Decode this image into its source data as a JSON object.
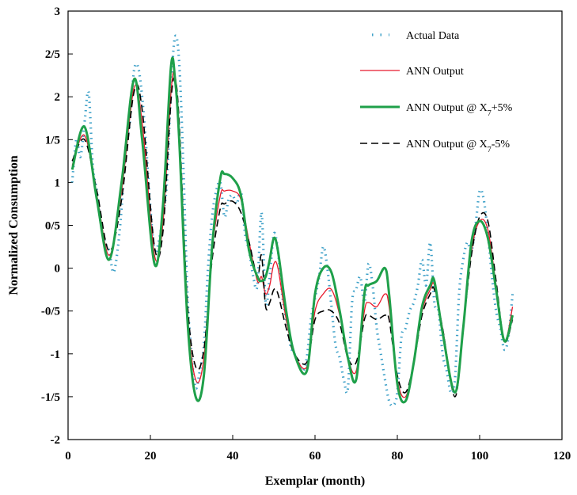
{
  "chart_data": {
    "type": "line",
    "title": "",
    "xlabel": "Exemplar (month)",
    "ylabel": "Normalized Consumption",
    "xlim": [
      0,
      120
    ],
    "ylim": [
      -2,
      3
    ],
    "xticks": [
      0,
      20,
      40,
      60,
      80,
      100,
      120
    ],
    "xtick_labels": [
      "0",
      "20",
      "40",
      "60",
      "80",
      "100",
      "120"
    ],
    "yticks": [
      -2,
      -1.5,
      -1,
      -0.5,
      0,
      0.5,
      1,
      1.5,
      2,
      2.5,
      3
    ],
    "ytick_labels": [
      "-2",
      "-1/5",
      "-1",
      "-0/5",
      "0",
      "0/5",
      "1",
      "1/5",
      "2",
      "2/5",
      "3"
    ],
    "grid": false,
    "legend_position": "top-right",
    "colors": {
      "actual": "#3da0c8",
      "ann": "#e8192c",
      "ann_plus": "#1fa04a",
      "ann_minus": "#000000"
    },
    "series": [
      {
        "name": "Actual Data",
        "style": "dotted",
        "x": [
          1,
          2,
          3,
          4,
          5,
          6,
          7,
          8,
          9,
          10,
          11,
          12,
          13,
          14,
          15,
          16,
          17,
          18,
          19,
          20,
          21,
          22,
          23,
          24,
          25,
          26,
          27,
          28,
          29,
          30,
          31,
          32,
          33,
          34,
          35,
          36,
          37,
          38,
          39,
          40,
          41,
          42,
          43,
          44,
          45,
          46,
          47,
          48,
          49,
          50,
          51,
          52,
          53,
          54,
          55,
          56,
          57,
          58,
          59,
          60,
          61,
          62,
          63,
          64,
          65,
          66,
          67,
          68,
          69,
          70,
          71,
          72,
          73,
          74,
          75,
          76,
          77,
          78,
          79,
          80,
          81,
          82,
          83,
          84,
          85,
          86,
          87,
          88,
          89,
          90,
          91,
          92,
          93,
          94,
          95,
          96,
          97,
          98,
          99,
          100,
          101,
          102,
          103,
          104,
          105,
          106,
          107,
          108
        ],
        "values": [
          1.0,
          1.5,
          1.3,
          1.7,
          2.05,
          1.2,
          0.9,
          0.5,
          0.3,
          0.2,
          -0.05,
          0.2,
          0.7,
          1.4,
          1.7,
          2.3,
          2.35,
          2.0,
          1.4,
          0.7,
          0.2,
          0.3,
          0.6,
          1.0,
          2.1,
          2.7,
          2.4,
          1.2,
          -0.3,
          -1.0,
          -1.4,
          -1.2,
          -0.9,
          0.0,
          0.6,
          0.9,
          1.0,
          0.6,
          0.8,
          0.85,
          0.75,
          0.9,
          0.4,
          0.2,
          -0.1,
          -0.2,
          0.65,
          -0.4,
          -0.1,
          0.4,
          0.2,
          -0.3,
          -0.6,
          -0.9,
          -1.0,
          -1.1,
          -1.2,
          -1.05,
          -0.6,
          -0.35,
          -0.1,
          0.25,
          0.0,
          -0.45,
          -0.9,
          -1.05,
          -1.3,
          -1.4,
          -0.4,
          -0.25,
          -0.1,
          -0.4,
          0.05,
          -0.2,
          -0.7,
          -1.0,
          -1.3,
          -1.55,
          -1.6,
          -1.45,
          -0.8,
          -0.7,
          -0.5,
          -0.4,
          -0.2,
          0.1,
          -0.2,
          0.3,
          -0.4,
          -0.5,
          -1.0,
          -1.2,
          -1.45,
          -1.3,
          -0.3,
          0.1,
          0.3,
          0.2,
          0.5,
          0.9,
          0.8,
          0.4,
          -0.1,
          -0.5,
          -0.7,
          -0.95,
          -0.8,
          -0.3
        ]
      },
      {
        "name": "ANN Output",
        "style": "solid-thin",
        "x": [
          1,
          4,
          7,
          10,
          13,
          16,
          18,
          21,
          23,
          25,
          26,
          27,
          29,
          31,
          33,
          35,
          37,
          38,
          40,
          42,
          44,
          46,
          47,
          48,
          49,
          50,
          51,
          53,
          55,
          58,
          60,
          62,
          64,
          66,
          68,
          70,
          72,
          73,
          75,
          77,
          78,
          80,
          82,
          84,
          86,
          88,
          89,
          91,
          94,
          96,
          98,
          100,
          102,
          104,
          106,
          108
        ],
        "values": [
          1.2,
          1.55,
          0.85,
          0.15,
          0.9,
          2.1,
          1.7,
          0.15,
          0.5,
          2.05,
          2.25,
          1.6,
          -0.5,
          -1.3,
          -1.05,
          0.2,
          0.85,
          0.9,
          0.9,
          0.8,
          0.3,
          -0.15,
          -0.1,
          -0.3,
          -0.2,
          0.05,
          0.0,
          -0.6,
          -1.0,
          -1.15,
          -0.5,
          -0.3,
          -0.25,
          -0.55,
          -1.05,
          -1.2,
          -0.5,
          -0.4,
          -0.45,
          -0.3,
          -0.45,
          -1.3,
          -1.5,
          -1.1,
          -0.5,
          -0.25,
          -0.2,
          -0.7,
          -1.45,
          -0.7,
          0.2,
          0.55,
          0.45,
          -0.2,
          -0.85,
          -0.45
        ]
      },
      {
        "name": "ANN Output @ X7+5%",
        "style": "solid-thick",
        "x": [
          1,
          4,
          7,
          10,
          13,
          16,
          18,
          21,
          23,
          25,
          26,
          27,
          29,
          31,
          33,
          35,
          37,
          38,
          40,
          42,
          44,
          46,
          47,
          48,
          49,
          50,
          51,
          53,
          55,
          58,
          60,
          62,
          64,
          66,
          68,
          70,
          72,
          73,
          75,
          77,
          78,
          80,
          82,
          84,
          86,
          88,
          89,
          91,
          94,
          96,
          98,
          100,
          102,
          104,
          106,
          108
        ],
        "values": [
          1.15,
          1.65,
          0.8,
          0.1,
          1.0,
          2.2,
          1.5,
          0.05,
          0.7,
          2.35,
          2.2,
          1.5,
          -0.6,
          -1.5,
          -1.25,
          0.25,
          1.05,
          1.1,
          1.05,
          0.85,
          0.2,
          -0.1,
          -0.15,
          -0.1,
          0.1,
          0.35,
          0.2,
          -0.5,
          -1.0,
          -1.2,
          -0.3,
          0.0,
          -0.05,
          -0.5,
          -1.05,
          -1.3,
          -0.3,
          -0.2,
          -0.15,
          0.0,
          -0.3,
          -1.35,
          -1.55,
          -1.1,
          -0.45,
          -0.2,
          -0.15,
          -0.75,
          -1.45,
          -0.7,
          0.3,
          0.55,
          0.35,
          -0.25,
          -0.85,
          -0.55
        ]
      },
      {
        "name": "ANN Output @ X7-5%",
        "style": "dashed",
        "x": [
          1,
          4,
          7,
          10,
          13,
          16,
          18,
          21,
          23,
          25,
          26,
          27,
          29,
          31,
          33,
          35,
          37,
          38,
          40,
          42,
          44,
          46,
          47,
          48,
          49,
          50,
          51,
          53,
          55,
          58,
          60,
          62,
          64,
          66,
          68,
          70,
          72,
          73,
          75,
          77,
          78,
          80,
          82,
          84,
          86,
          88,
          89,
          91,
          94,
          96,
          98,
          100,
          102,
          104,
          106,
          108
        ],
        "values": [
          1.25,
          1.5,
          0.9,
          0.2,
          0.8,
          2.05,
          1.85,
          0.25,
          0.4,
          1.95,
          2.2,
          1.7,
          -0.4,
          -1.15,
          -0.95,
          0.1,
          0.7,
          0.75,
          0.78,
          0.65,
          0.3,
          -0.1,
          0.15,
          -0.45,
          -0.4,
          -0.25,
          -0.3,
          -0.7,
          -1.0,
          -1.1,
          -0.6,
          -0.5,
          -0.5,
          -0.65,
          -1.05,
          -1.1,
          -0.6,
          -0.55,
          -0.6,
          -0.55,
          -0.6,
          -1.25,
          -1.45,
          -1.1,
          -0.55,
          -0.3,
          -0.25,
          -0.7,
          -1.5,
          -0.7,
          0.15,
          0.6,
          0.55,
          -0.15,
          -0.85,
          -0.6
        ]
      }
    ]
  },
  "legend": {
    "items": [
      {
        "label": "Actual Data",
        "key": "actual"
      },
      {
        "label": "ANN Output",
        "key": "ann"
      },
      {
        "label": "ANN Output @ X7+5%",
        "key": "ann_plus",
        "base": "ANN Output @ X",
        "sub": "7",
        "suffix": "+5%"
      },
      {
        "label": "ANN Output @ X7-5%",
        "key": "ann_minus",
        "base": "ANN Output @ X",
        "sub": "7",
        "suffix": "-5%"
      }
    ]
  }
}
